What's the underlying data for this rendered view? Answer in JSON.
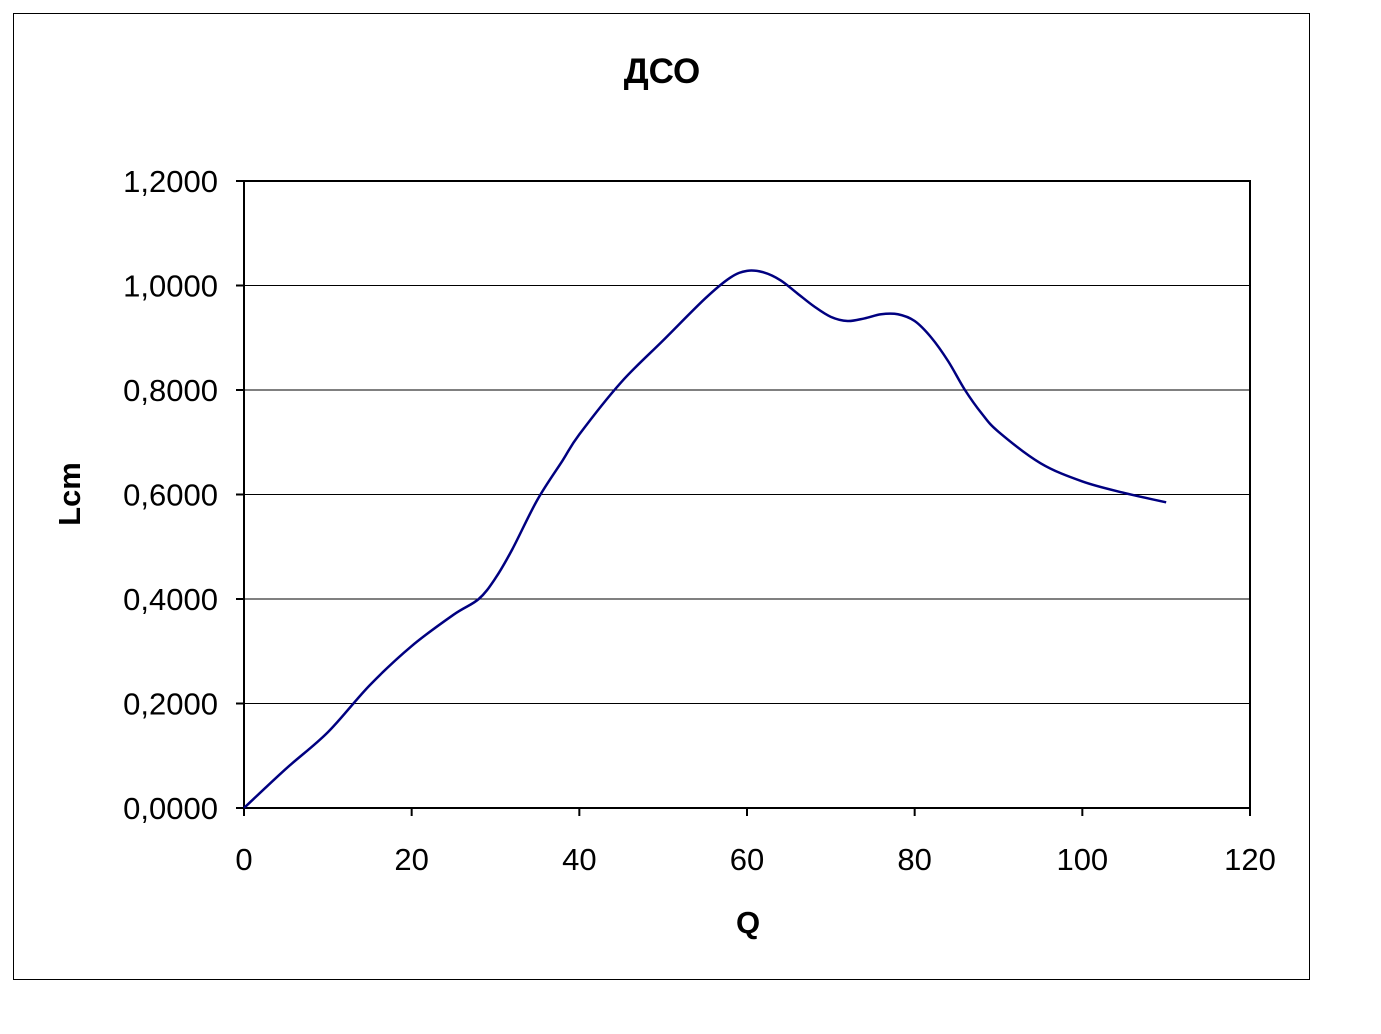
{
  "chart_data": {
    "type": "line",
    "title": "ДСО",
    "xlabel": "Q",
    "ylabel": "Lcm",
    "xlim": [
      0,
      120
    ],
    "ylim": [
      0,
      1.2
    ],
    "x_ticks": [
      0,
      20,
      40,
      60,
      80,
      100,
      120
    ],
    "y_ticks": [
      0,
      0.2,
      0.4,
      0.6,
      0.8,
      1.0,
      1.2
    ],
    "x_tick_labels": [
      "0",
      "20",
      "40",
      "60",
      "80",
      "100",
      "120"
    ],
    "y_tick_labels": [
      "0,0000",
      "0,2000",
      "0,4000",
      "0,6000",
      "0,8000",
      "1,0000",
      "1,2000"
    ],
    "grid": "horizontal",
    "legend": "none",
    "series_color": "#000080",
    "series": [
      {
        "x": [
          0,
          5,
          10,
          15,
          20,
          25,
          28,
          30,
          32,
          35,
          38,
          40,
          45,
          50,
          55,
          58,
          60,
          62,
          64,
          66,
          68,
          70,
          72,
          74,
          76,
          78,
          80,
          82,
          84,
          86,
          88,
          90,
          95,
          100,
          105,
          110
        ],
        "values": [
          0.0,
          0.075,
          0.145,
          0.235,
          0.31,
          0.37,
          0.4,
          0.44,
          0.495,
          0.59,
          0.665,
          0.715,
          0.815,
          0.895,
          0.975,
          1.015,
          1.028,
          1.025,
          1.01,
          0.985,
          0.96,
          0.94,
          0.932,
          0.937,
          0.945,
          0.945,
          0.932,
          0.9,
          0.855,
          0.8,
          0.755,
          0.72,
          0.66,
          0.625,
          0.603,
          0.585
        ]
      }
    ]
  }
}
